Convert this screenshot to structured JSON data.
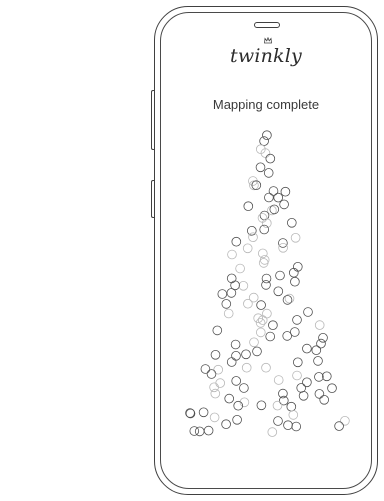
{
  "app": {
    "logo_text": "twinkly"
  },
  "screen": {
    "status_text": "Mapping complete"
  },
  "icons": {
    "logo_mark": "crown-icon"
  },
  "colors": {
    "outline": "#404040",
    "led_dark": "#505050",
    "led_light": "#b8b8b8",
    "background": "#ffffff"
  }
}
